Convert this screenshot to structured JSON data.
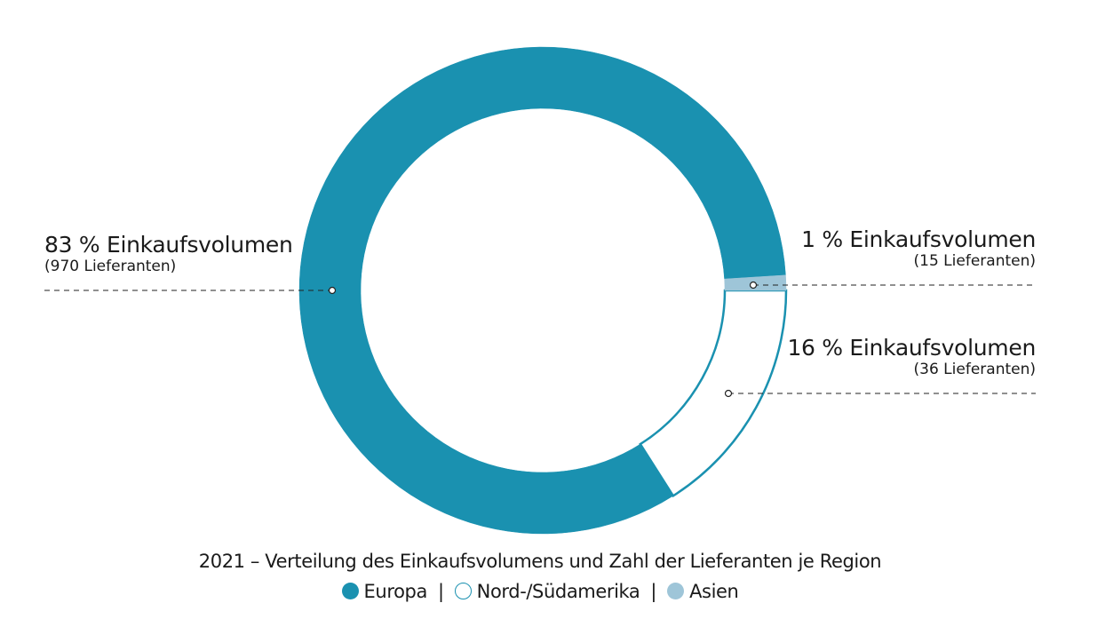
{
  "chart_data": {
    "type": "pie",
    "variant": "donut",
    "title": "2021 – Verteilung des Einkaufsvolumens und Zahl der Lieferanten je Region",
    "unit": "%",
    "series": [
      {
        "name": "Europa",
        "value": 83,
        "label": "83 % Einkaufsvolumen",
        "sublabel": "(970 Lieferanten)",
        "color": "#1a91b0"
      },
      {
        "name": "Nord-/Südamerika",
        "value": 16,
        "label": "16 % Einkaufsvolumen",
        "sublabel": "(36 Lieferanten)",
        "color": "#ffffff",
        "stroke": "#1a91b0"
      },
      {
        "name": "Asien",
        "value": 1,
        "label": "1 % Einkaufsvolumen",
        "sublabel": "(15 Lieferanten)",
        "color": "#9ec5d8"
      }
    ],
    "legend": {
      "placement": "bottom",
      "separator": "|"
    }
  }
}
